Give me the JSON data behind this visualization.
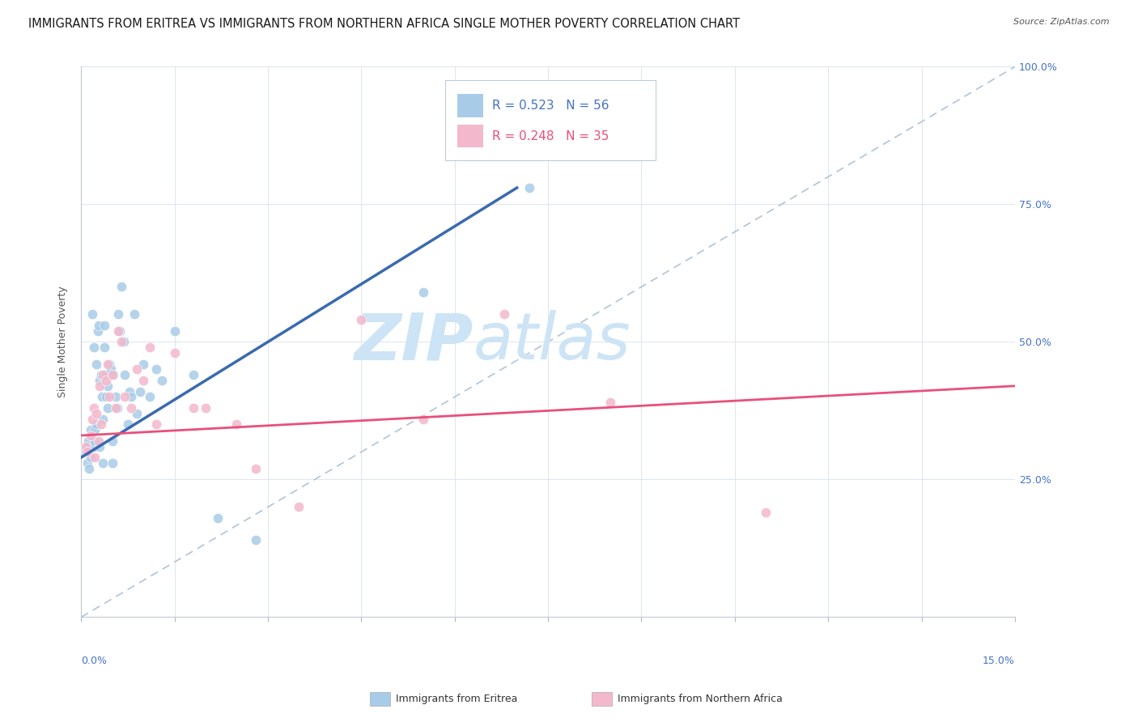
{
  "title": "IMMIGRANTS FROM ERITREA VS IMMIGRANTS FROM NORTHERN AFRICA SINGLE MOTHER POVERTY CORRELATION CHART",
  "source": "Source: ZipAtlas.com",
  "ylabel": "Single Mother Poverty",
  "color_eritrea": "#a8cce8",
  "color_north_africa": "#f4b8cc",
  "color_trendline_eritrea": "#3a6ab0",
  "color_trendline_north_africa": "#e8507a",
  "watermark_zip": "ZIP",
  "watermark_atlas": "atlas",
  "watermark_color": "#cce4f5",
  "legend_R_eritrea": "0.523",
  "legend_N_eritrea": "56",
  "legend_R_north_africa": "0.248",
  "legend_N_north_africa": "35",
  "legend_label_eritrea": "Immigrants from Eritrea",
  "legend_label_north_africa": "Immigrants from Northern Africa",
  "eritrea_x": [
    0.08,
    0.1,
    0.1,
    0.12,
    0.13,
    0.15,
    0.15,
    0.18,
    0.2,
    0.2,
    0.22,
    0.22,
    0.25,
    0.25,
    0.27,
    0.28,
    0.3,
    0.3,
    0.32,
    0.33,
    0.35,
    0.35,
    0.37,
    0.38,
    0.4,
    0.4,
    0.42,
    0.42,
    0.45,
    0.48,
    0.5,
    0.5,
    0.52,
    0.55,
    0.58,
    0.6,
    0.62,
    0.65,
    0.68,
    0.7,
    0.75,
    0.78,
    0.8,
    0.85,
    0.9,
    0.95,
    1.0,
    1.1,
    1.2,
    1.3,
    1.5,
    1.8,
    2.2,
    2.8,
    5.5,
    7.2
  ],
  "eritrea_y": [
    30,
    31,
    28,
    32,
    27,
    34,
    29,
    55,
    31,
    49,
    32,
    34,
    46,
    35,
    52,
    53,
    43,
    31,
    44,
    40,
    36,
    28,
    53,
    49,
    44,
    40,
    42,
    38,
    46,
    45,
    32,
    28,
    44,
    40,
    38,
    55,
    52,
    60,
    50,
    44,
    35,
    41,
    40,
    55,
    37,
    41,
    46,
    40,
    45,
    43,
    52,
    44,
    18,
    14,
    59,
    78
  ],
  "north_africa_x": [
    0.08,
    0.1,
    0.15,
    0.18,
    0.2,
    0.22,
    0.25,
    0.28,
    0.3,
    0.32,
    0.35,
    0.4,
    0.42,
    0.45,
    0.5,
    0.55,
    0.6,
    0.65,
    0.7,
    0.8,
    0.9,
    1.0,
    1.1,
    1.2,
    1.5,
    1.8,
    2.0,
    2.5,
    2.8,
    3.5,
    4.5,
    5.5,
    6.8,
    8.5,
    11.0
  ],
  "north_africa_y": [
    31,
    30,
    33,
    36,
    38,
    29,
    37,
    32,
    42,
    35,
    44,
    43,
    46,
    40,
    44,
    38,
    52,
    50,
    40,
    38,
    45,
    43,
    49,
    35,
    48,
    38,
    38,
    35,
    27,
    20,
    54,
    36,
    55,
    39,
    19
  ],
  "xlim": [
    0,
    15
  ],
  "ylim": [
    0,
    100
  ],
  "bg_color": "#ffffff",
  "grid_color": "#dde5f0",
  "title_fontsize": 10.5,
  "label_fontsize": 9,
  "tick_fontsize": 9,
  "right_tick_color": "#4472c4",
  "legend_text_color_eritrea": "#4472c4",
  "legend_text_color_north_africa": "#e8507a"
}
